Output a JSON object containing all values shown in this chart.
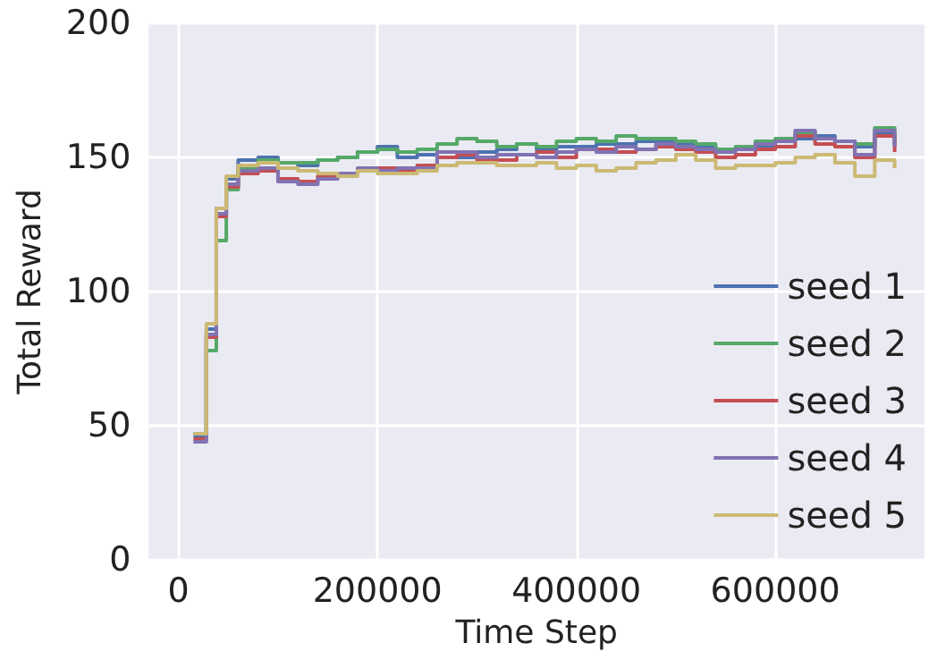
{
  "chart_data": {
    "type": "step",
    "xlabel": "Time Step",
    "ylabel": "Total Reward",
    "x": [
      15000,
      28000,
      38000,
      48000,
      60000,
      80000,
      100000,
      120000,
      140000,
      160000,
      180000,
      200000,
      220000,
      240000,
      260000,
      280000,
      300000,
      320000,
      340000,
      360000,
      380000,
      400000,
      420000,
      440000,
      460000,
      480000,
      500000,
      520000,
      540000,
      560000,
      580000,
      600000,
      620000,
      640000,
      660000,
      680000,
      700000,
      720000
    ],
    "series": [
      {
        "name": "seed 1",
        "color": "#4c72b0",
        "values": [
          46,
          86,
          131,
          142,
          149,
          150,
          148,
          147,
          149,
          150,
          152,
          154,
          150,
          151,
          150,
          150,
          152,
          153,
          155,
          153,
          154,
          154,
          155,
          155,
          156,
          156,
          155,
          154,
          153,
          153,
          154,
          156,
          157,
          158,
          156,
          154,
          159,
          155
        ]
      },
      {
        "name": "seed 2",
        "color": "#55a868",
        "values": [
          47,
          78,
          119,
          138,
          146,
          149,
          148,
          148,
          149,
          150,
          152,
          153,
          152,
          153,
          155,
          157,
          156,
          154,
          155,
          154,
          156,
          157,
          156,
          158,
          157,
          157,
          156,
          155,
          153,
          154,
          156,
          157,
          159,
          157,
          156,
          155,
          161,
          154
        ]
      },
      {
        "name": "seed 3",
        "color": "#c44e52",
        "values": [
          45,
          83,
          128,
          139,
          144,
          145,
          142,
          141,
          143,
          144,
          145,
          146,
          145,
          147,
          150,
          151,
          149,
          149,
          151,
          152,
          150,
          153,
          153,
          152,
          153,
          154,
          153,
          152,
          150,
          151,
          153,
          154,
          158,
          155,
          154,
          150,
          158,
          152
        ]
      },
      {
        "name": "seed 4",
        "color": "#8172b2",
        "values": [
          44,
          84,
          129,
          140,
          145,
          146,
          141,
          140,
          142,
          144,
          146,
          145,
          146,
          146,
          152,
          152,
          150,
          151,
          151,
          150,
          152,
          153,
          152,
          154,
          153,
          155,
          154,
          153,
          152,
          153,
          155,
          156,
          160,
          157,
          156,
          151,
          160,
          154
        ]
      },
      {
        "name": "seed 5",
        "color": "#ccb974",
        "values": [
          47,
          88,
          131,
          143,
          147,
          148,
          146,
          145,
          144,
          143,
          145,
          144,
          144,
          145,
          147,
          148,
          148,
          147,
          147,
          148,
          146,
          147,
          145,
          146,
          148,
          149,
          151,
          149,
          146,
          147,
          147,
          148,
          150,
          151,
          148,
          143,
          149,
          146
        ]
      }
    ],
    "xlim": [
      -30000,
      750000
    ],
    "xticks": [
      0,
      200000,
      400000,
      600000
    ],
    "ylim": [
      0,
      200
    ],
    "yticks": [
      0,
      50,
      100,
      150,
      200
    ],
    "grid": true,
    "legend": "bottom right",
    "line_style": "solid",
    "marker": "none"
  }
}
